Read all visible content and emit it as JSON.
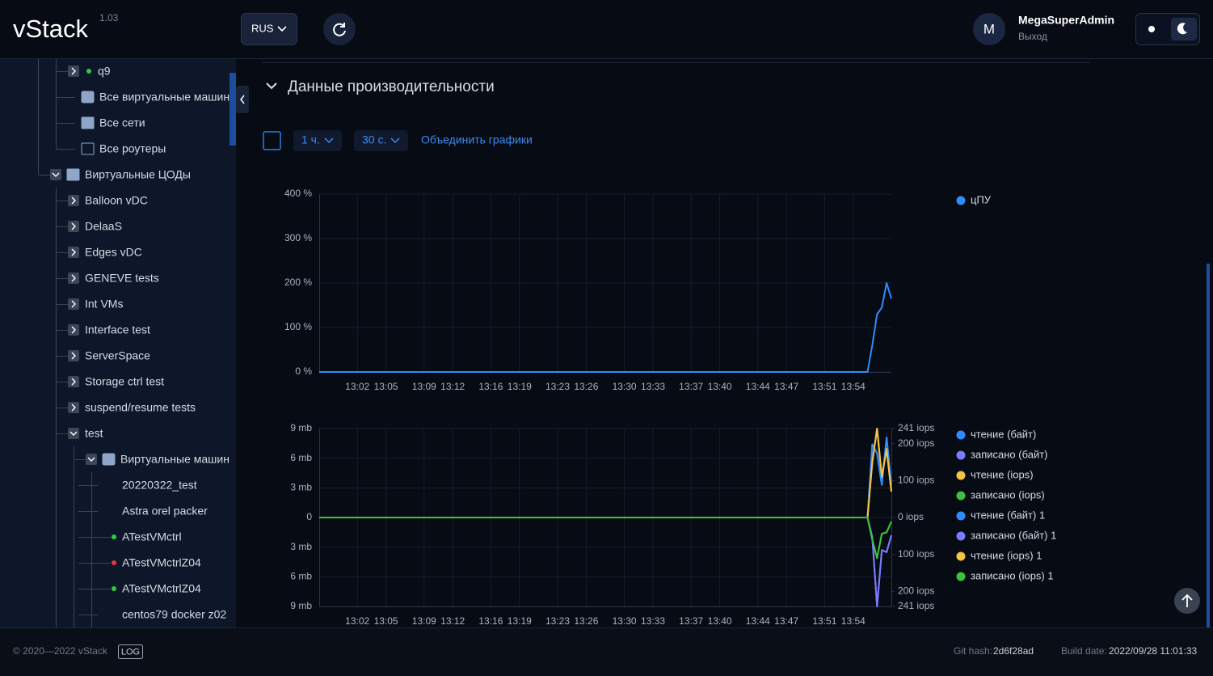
{
  "header": {
    "logo": "vStack",
    "version": "1.03",
    "language": "RUS",
    "avatar": "M",
    "user": "MegaSuperAdmin",
    "logout": "Выход"
  },
  "sidebar": {
    "items": [
      "q9",
      "Все виртуальные машины",
      "Все сети",
      "Все роутеры",
      "Виртуальные ЦОДы",
      "Balloon vDC",
      "DelaaS",
      "Edges vDC",
      "GENEVE tests",
      "Int VMs",
      "Interface test",
      "ServerSpace",
      "Storage ctrl test",
      "suspend/resume tests",
      "test",
      "Виртуальные машины",
      "20220322_test",
      "Astra orel packer",
      "ATestVMctrl",
      "ATestVMctrlZ04",
      "ATestVMctrlZ04",
      "centos79 docker z02"
    ]
  },
  "section": {
    "title": "Данные производительности",
    "period": "1 ч.",
    "interval": "30 с.",
    "merge": "Объединить графики"
  },
  "chart_data": [
    {
      "type": "line",
      "x": [
        "12:58:00",
        "13:55:30",
        "13:56:00",
        "13:56:30",
        "13:57:00",
        "13:57:30",
        "13:58:00"
      ],
      "xlim": [
        "12:58:00",
        "13:58:00"
      ],
      "xticks": [
        "13:02",
        "13:05",
        "13:09",
        "13:12",
        "13:16",
        "13:19",
        "13:23",
        "13:26",
        "13:30",
        "13:33",
        "13:37",
        "13:40",
        "13:44",
        "13:47",
        "13:51",
        "13:54"
      ],
      "ylim": [
        0,
        400
      ],
      "yticks": [
        {
          "value": 0,
          "label": "0 %"
        },
        {
          "value": 100,
          "label": "100 %"
        },
        {
          "value": 200,
          "label": "200 %"
        },
        {
          "value": 300,
          "label": "300 %"
        },
        {
          "value": 400,
          "label": "400 %"
        }
      ],
      "grid": true,
      "series": [
        {
          "name": "цПУ",
          "color": "#2f8cff",
          "values": [
            0,
            0,
            60,
            130,
            145,
            200,
            165
          ]
        }
      ]
    },
    {
      "type": "line",
      "x": [
        "12:58:00",
        "13:55:30",
        "13:56:00",
        "13:56:30",
        "13:57:00",
        "13:57:30",
        "13:58:00"
      ],
      "xlim": [
        "12:58:00",
        "13:58:00"
      ],
      "xticks": [
        "13:02",
        "13:05",
        "13:09",
        "13:12",
        "13:16",
        "13:19",
        "13:23",
        "13:26",
        "13:30",
        "13:33",
        "13:37",
        "13:40",
        "13:44",
        "13:47",
        "13:51",
        "13:54"
      ],
      "ylim": [
        -9,
        9
      ],
      "yticks": [
        {
          "value": 9,
          "label": "9 mb"
        },
        {
          "value": 6,
          "label": "6 mb"
        },
        {
          "value": 3,
          "label": "3 mb"
        },
        {
          "value": 0,
          "label": "0"
        },
        {
          "value": -3,
          "label": "3 mb"
        },
        {
          "value": -6,
          "label": "6 mb"
        },
        {
          "value": -9,
          "label": "9 mb"
        }
      ],
      "y2lim": [
        -241,
        241
      ],
      "y2ticks": [
        {
          "value": 241,
          "label": "241 iops"
        },
        {
          "value": 200,
          "label": "200 iops"
        },
        {
          "value": 100,
          "label": "100 iops"
        },
        {
          "value": 0,
          "label": "0 iops"
        },
        {
          "value": -100,
          "label": "100 iops"
        },
        {
          "value": -200,
          "label": "200 iops"
        },
        {
          "value": -241,
          "label": "241 iops"
        }
      ],
      "grid": true,
      "series": [
        {
          "name": "чтение (байт)",
          "color": "#2f8cff",
          "values": [
            0,
            0,
            7.4,
            6.5,
            3.3,
            8.1,
            3.3
          ]
        },
        {
          "name": "записано (байт)",
          "color": "#7a7cff",
          "values": [
            0,
            0,
            -2,
            -9,
            -3.3,
            -3.5,
            -1.8
          ]
        },
        {
          "name": "чтение (iops)",
          "color": "#f5c542",
          "axis": "y2",
          "values": [
            0,
            0,
            150,
            241,
            110,
            186,
            70
          ]
        },
        {
          "name": "записано (iops)",
          "color": "#3cc23c",
          "axis": "y2",
          "values": [
            0,
            0,
            -60,
            -110,
            -44,
            -40,
            -11
          ]
        },
        {
          "name": "чтение (байт) 1",
          "color": "#2f8cff",
          "values": [
            0,
            0,
            7.4,
            6.5,
            3.3,
            8.1,
            3.3
          ]
        },
        {
          "name": "записано (байт) 1",
          "color": "#7a7cff",
          "values": [
            0,
            0,
            -2,
            -9,
            -3.3,
            -3.5,
            -1.8
          ]
        },
        {
          "name": "чтение (iops) 1",
          "color": "#f5c542",
          "axis": "y2",
          "values": [
            0,
            0,
            150,
            241,
            110,
            186,
            70
          ]
        },
        {
          "name": "записано (iops) 1",
          "color": "#3cc23c",
          "axis": "y2",
          "values": [
            0,
            0,
            -60,
            -110,
            -44,
            -40,
            -11
          ]
        }
      ]
    }
  ],
  "footer": {
    "copyright": "© 2020—2022 vStack",
    "log": "LOG",
    "git_label": "Git hash:",
    "git_hash": "2d6f28ad",
    "build_label": "Build date:",
    "build_date": "2022/09/28 11:01:33"
  }
}
